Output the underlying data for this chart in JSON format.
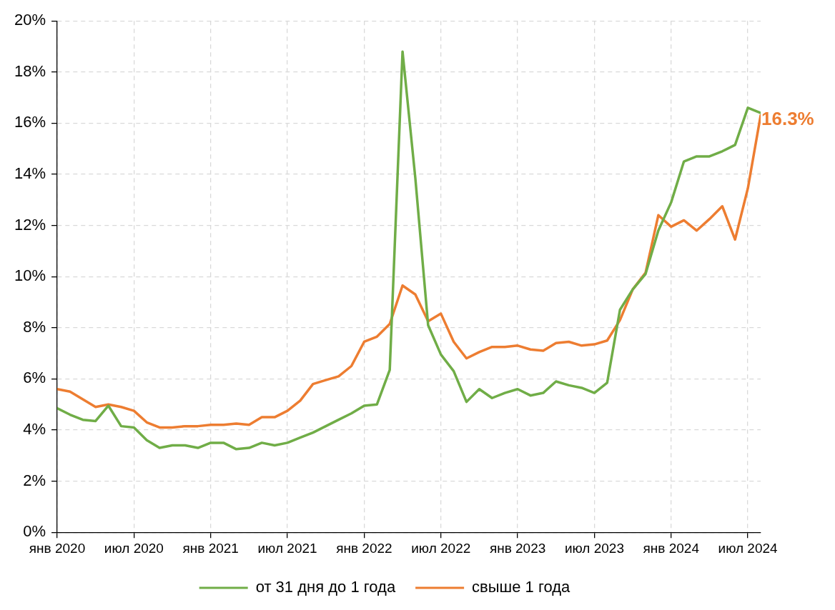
{
  "chart_data": {
    "type": "line",
    "x": [
      "2020-01",
      "2020-02",
      "2020-03",
      "2020-04",
      "2020-05",
      "2020-06",
      "2020-07",
      "2020-08",
      "2020-09",
      "2020-10",
      "2020-11",
      "2020-12",
      "2021-01",
      "2021-02",
      "2021-03",
      "2021-04",
      "2021-05",
      "2021-06",
      "2021-07",
      "2021-08",
      "2021-09",
      "2021-10",
      "2021-11",
      "2021-12",
      "2022-01",
      "2022-02",
      "2022-03",
      "2022-04",
      "2022-05",
      "2022-06",
      "2022-07",
      "2022-08",
      "2022-09",
      "2022-10",
      "2022-11",
      "2022-12",
      "2023-01",
      "2023-02",
      "2023-03",
      "2023-04",
      "2023-05",
      "2023-06",
      "2023-07",
      "2023-08",
      "2023-09",
      "2023-10",
      "2023-11",
      "2023-12",
      "2024-01",
      "2024-02",
      "2024-03",
      "2024-04",
      "2024-05",
      "2024-06",
      "2024-07",
      "2024-08"
    ],
    "series": [
      {
        "name": "от 31 дня до 1 года",
        "color": "#70ad47",
        "values": [
          4.85,
          4.6,
          4.4,
          4.35,
          4.95,
          4.15,
          4.1,
          3.6,
          3.3,
          3.4,
          3.4,
          3.3,
          3.5,
          3.5,
          3.25,
          3.3,
          3.5,
          3.4,
          3.5,
          3.7,
          3.9,
          4.15,
          4.4,
          4.65,
          4.95,
          5.0,
          6.35,
          18.8,
          13.85,
          8.1,
          6.95,
          6.3,
          5.1,
          5.6,
          5.25,
          5.45,
          5.6,
          5.35,
          5.45,
          5.9,
          5.75,
          5.65,
          5.45,
          5.85,
          8.7,
          9.5,
          10.1,
          11.8,
          12.9,
          14.5,
          14.7,
          14.7,
          14.9,
          15.15,
          16.6,
          16.4
        ]
      },
      {
        "name": "свыше 1 года",
        "color": "#ed7d31",
        "values": [
          5.6,
          5.5,
          5.2,
          4.9,
          5.0,
          4.9,
          4.75,
          4.3,
          4.1,
          4.1,
          4.15,
          4.15,
          4.2,
          4.2,
          4.25,
          4.2,
          4.5,
          4.5,
          4.75,
          5.15,
          5.8,
          5.95,
          6.1,
          6.5,
          7.45,
          7.65,
          8.15,
          9.65,
          9.3,
          8.25,
          8.55,
          7.45,
          6.8,
          7.05,
          7.25,
          7.25,
          7.3,
          7.15,
          7.1,
          7.4,
          7.45,
          7.3,
          7.35,
          7.5,
          8.3,
          9.5,
          10.15,
          12.4,
          11.95,
          12.2,
          11.8,
          12.25,
          12.75,
          11.45,
          13.45,
          16.3
        ],
        "value_labels": [
          null,
          null,
          null,
          null,
          null,
          null,
          null,
          null,
          null,
          null,
          null,
          null,
          null,
          null,
          null,
          null,
          null,
          null,
          null,
          null,
          null,
          null,
          null,
          null,
          null,
          null,
          null,
          null,
          null,
          null,
          null,
          null,
          null,
          null,
          null,
          null,
          null,
          null,
          null,
          null,
          null,
          null,
          null,
          null,
          null,
          null,
          null,
          null,
          null,
          null,
          null,
          null,
          null,
          null,
          null,
          "16.3%"
        ]
      }
    ],
    "xlim": [
      "2020-01",
      "2024-08"
    ],
    "xticks": [
      {
        "value": "2020-01",
        "label": "янв 2020"
      },
      {
        "value": "2020-07",
        "label": "июл 2020"
      },
      {
        "value": "2021-01",
        "label": "янв 2021"
      },
      {
        "value": "2021-07",
        "label": "июл 2021"
      },
      {
        "value": "2022-01",
        "label": "янв 2022"
      },
      {
        "value": "2022-07",
        "label": "июл 2022"
      },
      {
        "value": "2023-01",
        "label": "янв 2023"
      },
      {
        "value": "2023-07",
        "label": "июл 2023"
      },
      {
        "value": "2024-01",
        "label": "янв 2024"
      },
      {
        "value": "2024-07",
        "label": "июл 2024"
      }
    ],
    "ylim": [
      0,
      20
    ],
    "yticks": [
      {
        "value": 0,
        "label": "0%"
      },
      {
        "value": 2,
        "label": "2%"
      },
      {
        "value": 4,
        "label": "4%"
      },
      {
        "value": 6,
        "label": "6%"
      },
      {
        "value": 8,
        "label": "8%"
      },
      {
        "value": 10,
        "label": "10%"
      },
      {
        "value": 12,
        "label": "12%"
      },
      {
        "value": 14,
        "label": "14%"
      },
      {
        "value": 16,
        "label": "16%"
      },
      {
        "value": 18,
        "label": "18%"
      },
      {
        "value": 20,
        "label": "20%"
      }
    ],
    "grid": true,
    "legend": "bottom",
    "marker": "none",
    "line_style": "solid"
  }
}
